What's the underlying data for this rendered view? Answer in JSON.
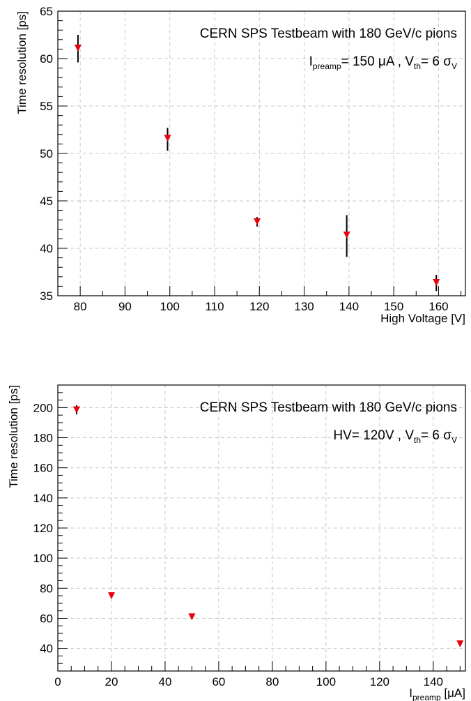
{
  "chart_data": [
    {
      "type": "scatter",
      "xlabel": "High Voltage [V]",
      "ylabel": "Time resolution [ps]",
      "xlim": [
        75,
        166
      ],
      "ylim": [
        35,
        65
      ],
      "xticks": [
        80,
        90,
        100,
        110,
        120,
        130,
        140,
        150,
        160
      ],
      "yticks": [
        35,
        40,
        45,
        50,
        55,
        60,
        65
      ],
      "grid": true,
      "annotations": {
        "line1": "CERN SPS Testbeam with 180 GeV/c pions",
        "line2": {
          "p1": "I",
          "p1_sub": "preamp",
          "p2": "= 150 μA , V",
          "p2_sub": "th",
          "p3": "= 6 σ",
          "p3_sub": "V"
        }
      },
      "series": [
        {
          "marker": "triangle-down",
          "color": "#e8000b",
          "x": [
            79.5,
            99.5,
            119.5,
            139.5,
            159.5
          ],
          "y": [
            61.1,
            51.6,
            42.8,
            41.4,
            36.4
          ],
          "yerr_low": [
            1.5,
            1.3,
            0.5,
            2.3,
            0.9
          ],
          "yerr_high": [
            1.4,
            1.1,
            0.5,
            2.1,
            0.8
          ]
        }
      ]
    },
    {
      "type": "scatter",
      "xlabel": {
        "p1": "I",
        "p1_sub": "preamp",
        "p2": " [μA]"
      },
      "ylabel": "Time resolution [ps]",
      "xlim": [
        0,
        152
      ],
      "ylim": [
        25,
        215
      ],
      "xticks": [
        0,
        20,
        40,
        60,
        80,
        100,
        120,
        140
      ],
      "yticks": [
        40,
        60,
        80,
        100,
        120,
        140,
        160,
        180,
        200
      ],
      "grid": true,
      "annotations": {
        "line1": "CERN SPS Testbeam with 180 GeV/c pions",
        "line2": {
          "p1": "HV= 120V , V",
          "p1_sub": "th",
          "p2": "= 6 σ",
          "p2_sub": "V"
        }
      },
      "series": [
        {
          "marker": "triangle-down",
          "color": "#e8000b",
          "x": [
            7,
            20,
            50,
            150
          ],
          "y": [
            198.5,
            75,
            61,
            43
          ],
          "yerr_low": [
            3,
            0,
            0,
            0
          ],
          "yerr_high": [
            3,
            0,
            0,
            0
          ]
        }
      ]
    }
  ]
}
